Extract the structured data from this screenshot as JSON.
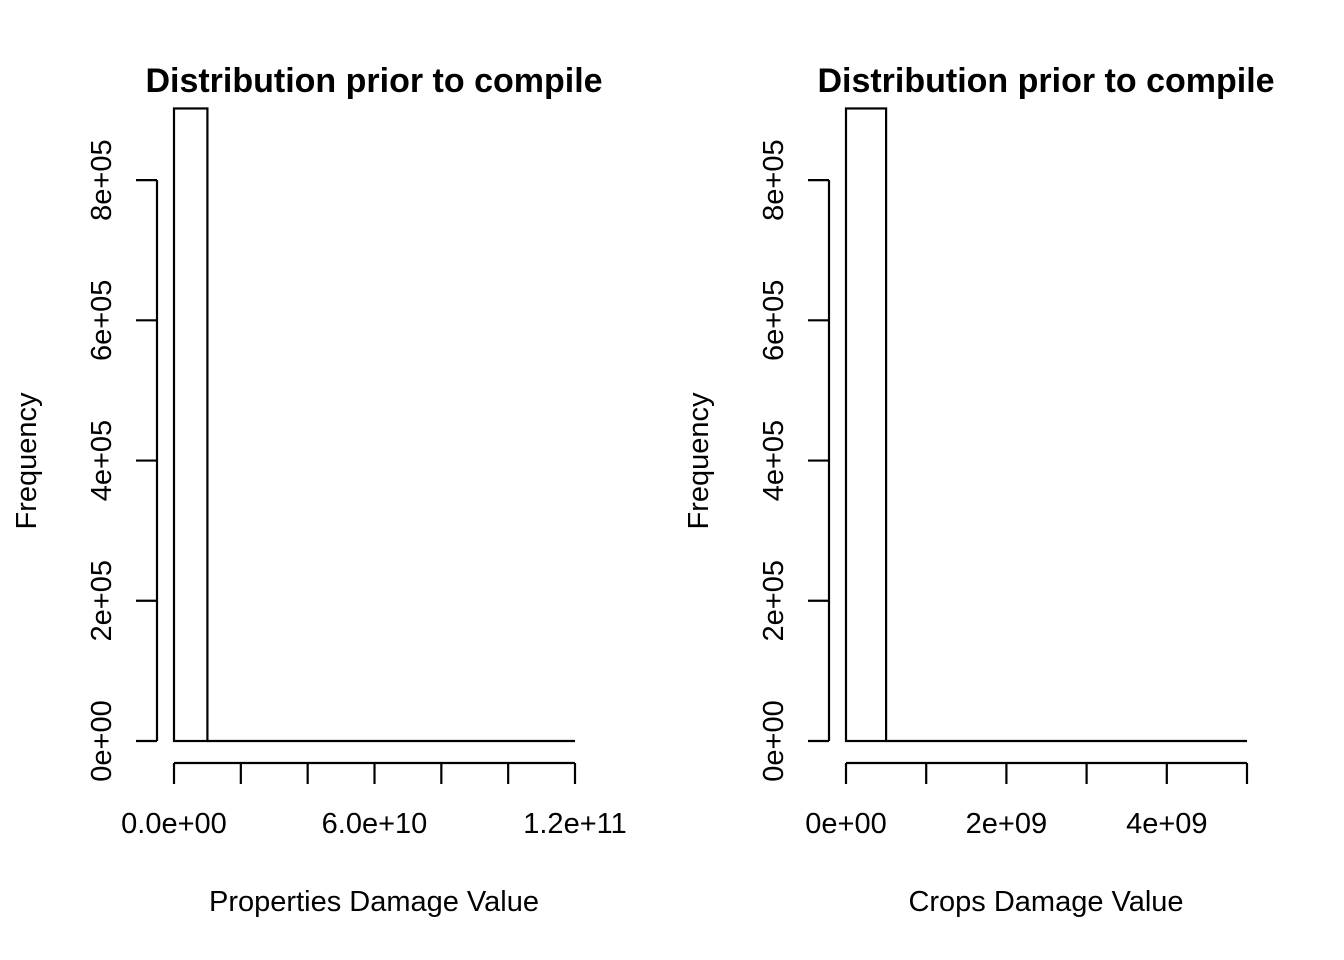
{
  "chart_data": [
    {
      "type": "bar",
      "title": "Distribution prior to compile",
      "xlabel": "Properties Damage Value",
      "ylabel": "Frequency",
      "xlim": [
        0,
        120000000000
      ],
      "ylim": [
        0,
        900000
      ],
      "x_ticks": [
        0,
        20000000000,
        40000000000,
        60000000000,
        80000000000,
        100000000000,
        120000000000
      ],
      "x_tick_labels": [
        "0.0e+00",
        "",
        "",
        "6.0e+10",
        "",
        "",
        "1.2e+11"
      ],
      "y_ticks": [
        0,
        200000,
        400000,
        600000,
        800000
      ],
      "y_tick_labels": [
        "0e+00",
        "2e+05",
        "4e+05",
        "6e+05",
        "8e+05"
      ],
      "bins": [
        {
          "x0": 0,
          "x1": 10000000000,
          "count": 902200
        },
        {
          "x0": 10000000000,
          "x1": 120000000000,
          "count": 0
        }
      ],
      "grid": false
    },
    {
      "type": "bar",
      "title": "Distribution prior to compile",
      "xlabel": "Crops Damage Value",
      "ylabel": "Frequency",
      "xlim": [
        0,
        5000000000
      ],
      "ylim": [
        0,
        900000
      ],
      "x_ticks": [
        0,
        1000000000,
        2000000000,
        3000000000,
        4000000000,
        5000000000
      ],
      "x_tick_labels": [
        "0e+00",
        "",
        "2e+09",
        "",
        "4e+09",
        ""
      ],
      "y_ticks": [
        0,
        200000,
        400000,
        600000,
        800000
      ],
      "y_tick_labels": [
        "0e+00",
        "2e+05",
        "4e+05",
        "6e+05",
        "8e+05"
      ],
      "bins": [
        {
          "x0": 0,
          "x1": 500000000,
          "count": 902200
        },
        {
          "x0": 500000000,
          "x1": 5000000000,
          "count": 0
        }
      ],
      "grid": false
    }
  ]
}
